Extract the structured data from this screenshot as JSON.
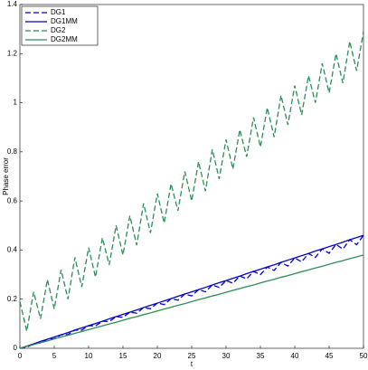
{
  "chart_data": {
    "type": "line",
    "xlabel": "t",
    "ylabel": "Phase error",
    "x": [
      0,
      1,
      2,
      3,
      4,
      5,
      6,
      7,
      8,
      9,
      10,
      11,
      12,
      13,
      14,
      15,
      16,
      17,
      18,
      19,
      20,
      21,
      22,
      23,
      24,
      25,
      26,
      27,
      28,
      29,
      30,
      31,
      32,
      33,
      34,
      35,
      36,
      37,
      38,
      39,
      40,
      41,
      42,
      43,
      44,
      45,
      46,
      47,
      48,
      49,
      50
    ],
    "xlim": [
      0,
      50
    ],
    "xticks": [
      0,
      5,
      10,
      15,
      20,
      25,
      30,
      35,
      40,
      45,
      50
    ],
    "ylim": [
      0,
      1.4
    ],
    "yticks": [
      0,
      0.2,
      0.4,
      0.6,
      0.8,
      1,
      1.2,
      1.4
    ],
    "legend": "upper left",
    "series": [
      {
        "name": "DG1",
        "color": "#0000cc",
        "dash": true,
        "values": [
          0,
          0.004,
          0.018,
          0.022,
          0.037,
          0.039,
          0.055,
          0.056,
          0.074,
          0.074,
          0.092,
          0.091,
          0.11,
          0.109,
          0.129,
          0.126,
          0.147,
          0.143,
          0.166,
          0.161,
          0.184,
          0.178,
          0.202,
          0.196,
          0.221,
          0.213,
          0.239,
          0.23,
          0.258,
          0.248,
          0.276,
          0.265,
          0.294,
          0.283,
          0.313,
          0.3,
          0.331,
          0.317,
          0.35,
          0.335,
          0.368,
          0.352,
          0.386,
          0.37,
          0.405,
          0.387,
          0.423,
          0.404,
          0.442,
          0.422,
          0.46
        ]
      },
      {
        "name": "DG1MM",
        "color": "#0000cc",
        "dash": false,
        "values": [
          0,
          0.009,
          0.018,
          0.028,
          0.037,
          0.046,
          0.055,
          0.064,
          0.074,
          0.083,
          0.092,
          0.101,
          0.11,
          0.12,
          0.129,
          0.138,
          0.147,
          0.156,
          0.166,
          0.175,
          0.184,
          0.193,
          0.202,
          0.212,
          0.221,
          0.23,
          0.239,
          0.248,
          0.258,
          0.267,
          0.276,
          0.285,
          0.294,
          0.304,
          0.313,
          0.322,
          0.331,
          0.34,
          0.35,
          0.359,
          0.368,
          0.377,
          0.386,
          0.396,
          0.405,
          0.414,
          0.423,
          0.432,
          0.442,
          0.451,
          0.46
        ]
      },
      {
        "name": "DG2",
        "color": "#2e8b57",
        "dash": true,
        "values": [
          0.19,
          0.07,
          0.23,
          0.12,
          0.28,
          0.16,
          0.32,
          0.2,
          0.37,
          0.25,
          0.41,
          0.29,
          0.45,
          0.34,
          0.5,
          0.38,
          0.54,
          0.42,
          0.59,
          0.47,
          0.63,
          0.51,
          0.67,
          0.56,
          0.72,
          0.6,
          0.76,
          0.64,
          0.81,
          0.69,
          0.85,
          0.73,
          0.89,
          0.78,
          0.94,
          0.82,
          0.98,
          0.86,
          1.03,
          0.91,
          1.07,
          0.95,
          1.11,
          1.0,
          1.16,
          1.04,
          1.2,
          1.08,
          1.25,
          1.13,
          1.29
        ]
      },
      {
        "name": "DG2MM",
        "color": "#2e8b57",
        "dash": false,
        "values": [
          0,
          0.008,
          0.015,
          0.023,
          0.03,
          0.038,
          0.046,
          0.053,
          0.061,
          0.068,
          0.076,
          0.084,
          0.091,
          0.099,
          0.106,
          0.114,
          0.122,
          0.129,
          0.137,
          0.144,
          0.152,
          0.16,
          0.167,
          0.175,
          0.182,
          0.19,
          0.198,
          0.205,
          0.213,
          0.22,
          0.228,
          0.236,
          0.243,
          0.251,
          0.258,
          0.266,
          0.274,
          0.281,
          0.289,
          0.296,
          0.304,
          0.312,
          0.319,
          0.327,
          0.334,
          0.342,
          0.35,
          0.357,
          0.365,
          0.372,
          0.38
        ]
      }
    ]
  }
}
